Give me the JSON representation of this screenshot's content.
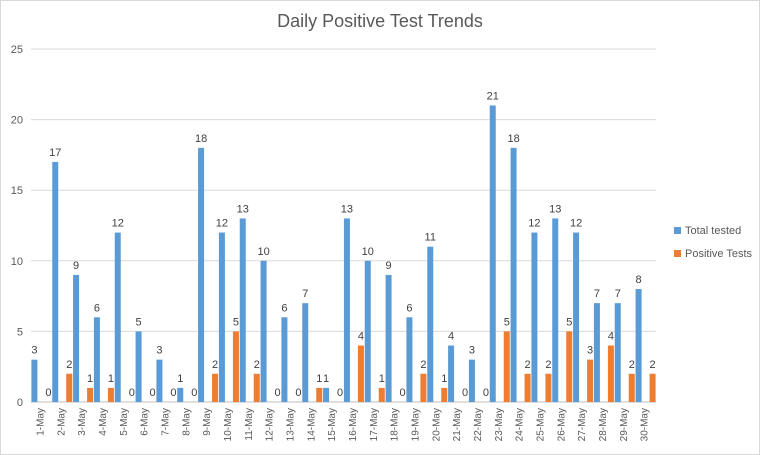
{
  "chart_data": {
    "type": "bar",
    "title": "Daily Positive Test Trends",
    "xlabel": "",
    "ylabel": "",
    "ylim": [
      0,
      25
    ],
    "yticks": [
      0,
      5,
      10,
      15,
      20,
      25
    ],
    "grid": true,
    "legend_position": "right",
    "categories": [
      "1-May",
      "2-May",
      "3-May",
      "4-May",
      "5-May",
      "6-May",
      "7-May",
      "8-May",
      "9-May",
      "10-May",
      "11-May",
      "12-May",
      "13-May",
      "14-May",
      "15-May",
      "16-May",
      "17-May",
      "18-May",
      "19-May",
      "20-May",
      "21-May",
      "22-May",
      "23-May",
      "24-May",
      "25-May",
      "26-May",
      "27-May",
      "28-May",
      "29-May",
      "30-May"
    ],
    "series": [
      {
        "name": "Total tested",
        "color": "#5b9bd5",
        "values": [
          3,
          17,
          9,
          6,
          12,
          5,
          3,
          1,
          18,
          12,
          13,
          10,
          6,
          7,
          1,
          13,
          10,
          9,
          6,
          11,
          4,
          3,
          21,
          18,
          12,
          13,
          12,
          7,
          7,
          8
        ]
      },
      {
        "name": "Positive Tests",
        "color": "#ed7d31",
        "values": [
          0,
          2,
          1,
          1,
          0,
          0,
          0,
          0,
          2,
          5,
          2,
          0,
          0,
          1,
          0,
          4,
          1,
          0,
          2,
          1,
          0,
          0,
          5,
          2,
          2,
          5,
          3,
          4,
          2,
          2
        ]
      }
    ]
  }
}
